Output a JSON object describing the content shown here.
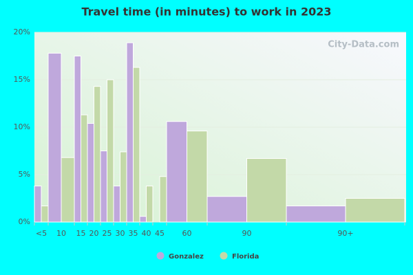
{
  "chart_data": {
    "type": "bar",
    "title": "Travel time (in minutes) to work in 2023",
    "watermark": "City-Data.com",
    "categories": [
      "<5",
      "10",
      "15",
      "20",
      "25",
      "30",
      "35",
      "40",
      "45",
      "60",
      "90",
      "90+"
    ],
    "series": [
      {
        "name": "Gonzalez",
        "color": "#bfa8dc",
        "values": [
          3.8,
          17.8,
          17.5,
          10.4,
          7.5,
          3.8,
          18.9,
          0.6,
          0,
          10.6,
          2.7,
          1.7
        ]
      },
      {
        "name": "Florida",
        "color": "#c3d9a8",
        "values": [
          1.7,
          6.8,
          11.3,
          14.3,
          15.0,
          7.4,
          16.3,
          3.8,
          4.8,
          9.6,
          6.7,
          2.5
        ]
      }
    ],
    "ylim": [
      0,
      20
    ],
    "yticks": [
      {
        "value": 0,
        "label": "0%"
      },
      {
        "value": 5,
        "label": "5%"
      },
      {
        "value": 10,
        "label": "10%"
      },
      {
        "value": 15,
        "label": "15%"
      },
      {
        "value": 20,
        "label": "20%"
      }
    ],
    "grid": true,
    "legend": "bottom"
  }
}
